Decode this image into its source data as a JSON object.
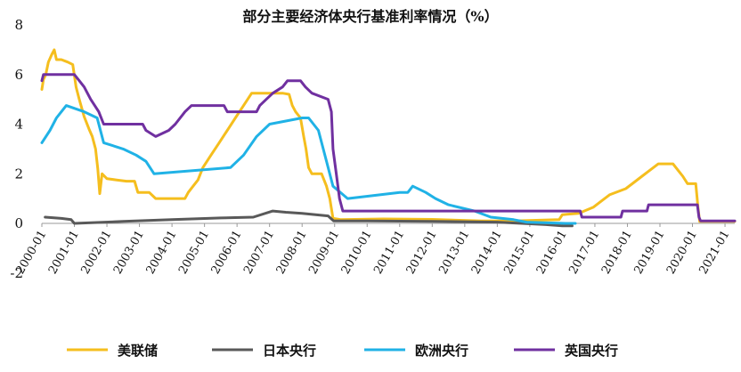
{
  "chart_data": {
    "type": "line",
    "title": "部分主要经济体央行基准利率情况（%）",
    "xlabel": "",
    "ylabel": "",
    "ylim": [
      -2,
      8
    ],
    "yticks": [
      "8",
      "6",
      "4",
      "2",
      "0",
      "-2"
    ],
    "x_ticks": [
      "2000-01",
      "2001-01",
      "2002-01",
      "2003-01",
      "2004-01",
      "2005-01",
      "2006-01",
      "2007-01",
      "2008-01",
      "2009-01",
      "2010-01",
      "2011-01",
      "2012-01",
      "2013-01",
      "2014-01",
      "2015-01",
      "2016-01",
      "2017-01",
      "2018-01",
      "2019-01",
      "2020-01",
      "2021-01"
    ],
    "grid": false,
    "legend_position": "bottom",
    "series": [
      {
        "name": "美联储",
        "color": "#F5BE1E",
        "points": [
          [
            2000.0,
            5.4
          ],
          [
            2000.05,
            5.8
          ],
          [
            2000.12,
            6.0
          ],
          [
            2000.2,
            6.5
          ],
          [
            2000.3,
            6.8
          ],
          [
            2000.38,
            7.0
          ],
          [
            2000.45,
            6.6
          ],
          [
            2000.6,
            6.6
          ],
          [
            2000.8,
            6.5
          ],
          [
            2000.95,
            6.4
          ],
          [
            2001.05,
            5.5
          ],
          [
            2001.15,
            5.0
          ],
          [
            2001.3,
            4.3
          ],
          [
            2001.45,
            3.8
          ],
          [
            2001.55,
            3.5
          ],
          [
            2001.65,
            3.0
          ],
          [
            2001.72,
            2.2
          ],
          [
            2001.78,
            1.2
          ],
          [
            2001.85,
            2.0
          ],
          [
            2002.0,
            1.8
          ],
          [
            2002.3,
            1.75
          ],
          [
            2002.6,
            1.7
          ],
          [
            2002.85,
            1.7
          ],
          [
            2002.95,
            1.25
          ],
          [
            2003.3,
            1.25
          ],
          [
            2003.5,
            1.0
          ],
          [
            2003.8,
            1.0
          ],
          [
            2004.2,
            1.0
          ],
          [
            2004.4,
            1.0
          ],
          [
            2004.5,
            1.25
          ],
          [
            2004.65,
            1.5
          ],
          [
            2004.8,
            1.75
          ],
          [
            2004.95,
            2.25
          ],
          [
            2005.2,
            2.75
          ],
          [
            2005.45,
            3.25
          ],
          [
            2005.7,
            3.75
          ],
          [
            2005.95,
            4.25
          ],
          [
            2006.2,
            4.75
          ],
          [
            2006.45,
            5.25
          ],
          [
            2006.7,
            5.25
          ],
          [
            2007.0,
            5.25
          ],
          [
            2007.4,
            5.25
          ],
          [
            2007.6,
            5.2
          ],
          [
            2007.7,
            4.75
          ],
          [
            2007.8,
            4.5
          ],
          [
            2007.95,
            4.25
          ],
          [
            2008.05,
            3.5
          ],
          [
            2008.12,
            3.0
          ],
          [
            2008.2,
            2.25
          ],
          [
            2008.3,
            2.0
          ],
          [
            2008.6,
            2.0
          ],
          [
            2008.75,
            1.5
          ],
          [
            2008.85,
            1.0
          ],
          [
            2008.95,
            0.2
          ],
          [
            2009.2,
            0.15
          ],
          [
            2010.5,
            0.18
          ],
          [
            2012.0,
            0.16
          ],
          [
            2013.5,
            0.1
          ],
          [
            2014.5,
            0.1
          ],
          [
            2015.9,
            0.15
          ],
          [
            2016.0,
            0.35
          ],
          [
            2016.5,
            0.4
          ],
          [
            2016.95,
            0.65
          ],
          [
            2017.2,
            0.9
          ],
          [
            2017.45,
            1.15
          ],
          [
            2017.95,
            1.4
          ],
          [
            2018.2,
            1.65
          ],
          [
            2018.45,
            1.9
          ],
          [
            2018.7,
            2.15
          ],
          [
            2018.95,
            2.4
          ],
          [
            2019.4,
            2.4
          ],
          [
            2019.55,
            2.15
          ],
          [
            2019.7,
            1.9
          ],
          [
            2019.85,
            1.6
          ],
          [
            2020.1,
            1.6
          ],
          [
            2020.17,
            0.65
          ],
          [
            2020.22,
            0.08
          ],
          [
            2021.0,
            0.08
          ],
          [
            2021.3,
            0.08
          ]
        ]
      },
      {
        "name": "日本央行",
        "color": "#595959",
        "points": [
          [
            2000.1,
            0.25
          ],
          [
            2000.6,
            0.2
          ],
          [
            2000.9,
            0.15
          ],
          [
            2001.0,
            0.0
          ],
          [
            2002.5,
            0.08
          ],
          [
            2004.0,
            0.15
          ],
          [
            2005.5,
            0.22
          ],
          [
            2006.5,
            0.25
          ],
          [
            2007.1,
            0.5
          ],
          [
            2007.5,
            0.45
          ],
          [
            2008.0,
            0.4
          ],
          [
            2008.8,
            0.3
          ],
          [
            2008.97,
            0.1
          ],
          [
            2010.0,
            0.1
          ],
          [
            2012.0,
            0.08
          ],
          [
            2014.0,
            0.05
          ],
          [
            2015.5,
            -0.05
          ],
          [
            2016.0,
            -0.1
          ],
          [
            2016.3,
            -0.1
          ]
        ]
      },
      {
        "name": "欧洲央行",
        "color": "#20B2E6",
        "points": [
          [
            2000.0,
            3.25
          ],
          [
            2000.25,
            3.75
          ],
          [
            2000.45,
            4.25
          ],
          [
            2000.75,
            4.75
          ],
          [
            2001.3,
            4.5
          ],
          [
            2001.7,
            4.25
          ],
          [
            2001.9,
            3.25
          ],
          [
            2002.5,
            3.0
          ],
          [
            2002.9,
            2.75
          ],
          [
            2003.2,
            2.5
          ],
          [
            2003.45,
            2.0
          ],
          [
            2005.8,
            2.25
          ],
          [
            2006.2,
            2.75
          ],
          [
            2006.6,
            3.5
          ],
          [
            2007.0,
            4.0
          ],
          [
            2008.0,
            4.25
          ],
          [
            2008.2,
            4.25
          ],
          [
            2008.5,
            3.75
          ],
          [
            2008.75,
            2.5
          ],
          [
            2008.95,
            1.5
          ],
          [
            2009.4,
            1.0
          ],
          [
            2011.0,
            1.25
          ],
          [
            2011.25,
            1.25
          ],
          [
            2011.4,
            1.5
          ],
          [
            2011.8,
            1.25
          ],
          [
            2012.1,
            1.0
          ],
          [
            2012.5,
            0.75
          ],
          [
            2013.3,
            0.5
          ],
          [
            2013.8,
            0.25
          ],
          [
            2014.5,
            0.15
          ],
          [
            2014.9,
            0.05
          ],
          [
            2016.1,
            0.0
          ],
          [
            2016.4,
            0.0
          ]
        ]
      },
      {
        "name": "英国央行",
        "color": "#7030A0",
        "points": [
          [
            2000.0,
            5.75
          ],
          [
            2000.05,
            6.0
          ],
          [
            2001.0,
            6.0
          ],
          [
            2001.15,
            5.75
          ],
          [
            2001.3,
            5.5
          ],
          [
            2001.5,
            5.0
          ],
          [
            2001.75,
            4.5
          ],
          [
            2001.9,
            4.0
          ],
          [
            2003.1,
            4.0
          ],
          [
            2003.2,
            3.75
          ],
          [
            2003.5,
            3.5
          ],
          [
            2003.9,
            3.75
          ],
          [
            2004.1,
            4.0
          ],
          [
            2004.4,
            4.5
          ],
          [
            2004.6,
            4.75
          ],
          [
            2005.6,
            4.75
          ],
          [
            2005.7,
            4.5
          ],
          [
            2006.6,
            4.5
          ],
          [
            2006.7,
            4.75
          ],
          [
            2006.9,
            5.0
          ],
          [
            2007.1,
            5.25
          ],
          [
            2007.4,
            5.5
          ],
          [
            2007.55,
            5.75
          ],
          [
            2007.95,
            5.75
          ],
          [
            2008.1,
            5.5
          ],
          [
            2008.3,
            5.25
          ],
          [
            2008.8,
            5.0
          ],
          [
            2008.9,
            4.5
          ],
          [
            2008.95,
            3.0
          ],
          [
            2009.05,
            2.0
          ],
          [
            2009.15,
            1.0
          ],
          [
            2009.25,
            0.5
          ],
          [
            2016.55,
            0.5
          ],
          [
            2016.6,
            0.25
          ],
          [
            2017.8,
            0.25
          ],
          [
            2017.85,
            0.5
          ],
          [
            2018.6,
            0.5
          ],
          [
            2018.65,
            0.75
          ],
          [
            2020.15,
            0.75
          ],
          [
            2020.2,
            0.25
          ],
          [
            2020.25,
            0.1
          ],
          [
            2021.3,
            0.1
          ]
        ]
      }
    ]
  }
}
